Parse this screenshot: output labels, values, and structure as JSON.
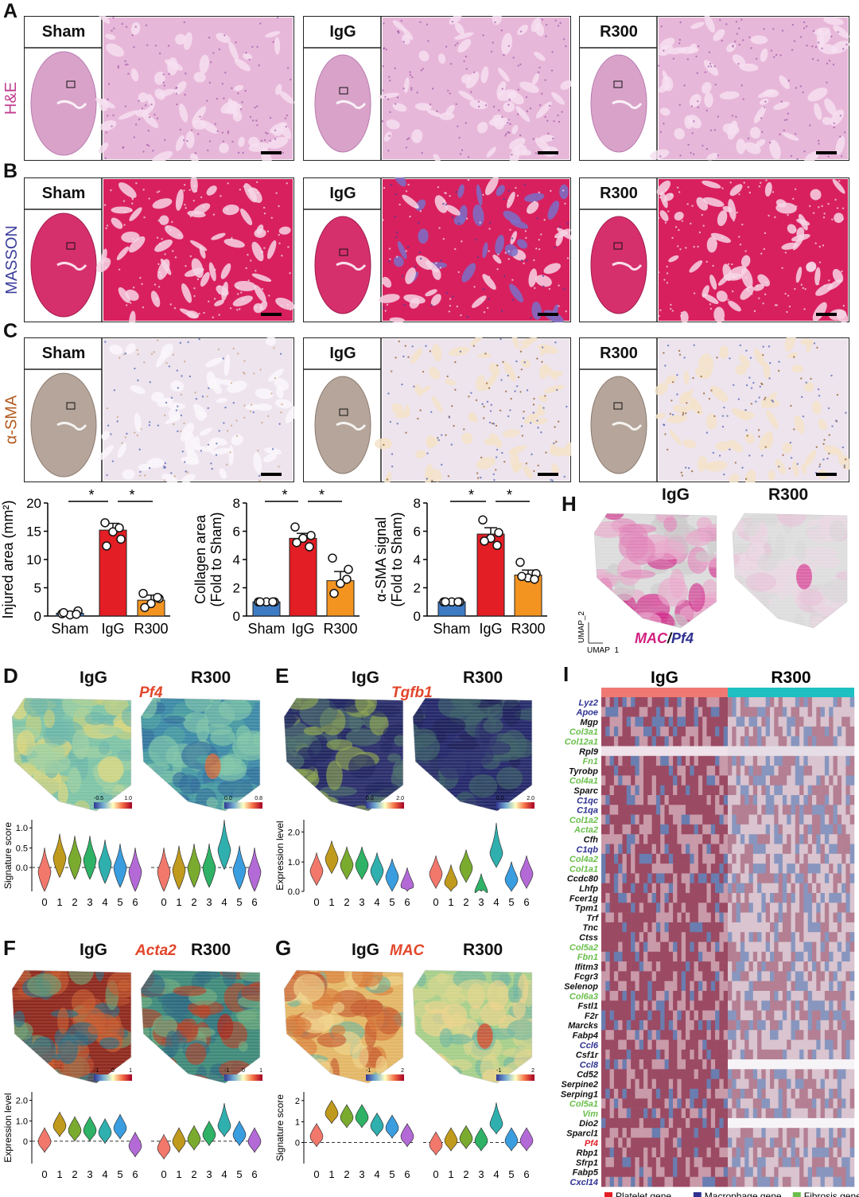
{
  "panel_letters": [
    "A",
    "B",
    "C",
    "D",
    "E",
    "F",
    "G",
    "H",
    "I"
  ],
  "groups": [
    "Sham",
    "IgG",
    "R300"
  ],
  "stains": [
    "H&E",
    "MASSON",
    "α-SMA"
  ],
  "colors": {
    "he_bg": "#e7b7d9",
    "he_dot": "#a25aa6",
    "masson_bg": "#d8205e",
    "masson_dot": "#f4e7f0",
    "masson_blue": "#3d3f9a",
    "sma_bg": "#eee4ee",
    "sma_brown": "#9b6a2d",
    "sham_bar": "#3e7bc5",
    "igg_bar": "#e31e24",
    "r300_bar": "#f39421",
    "stain_he_label": "#c23b8e",
    "stain_masson_label": "#3b3d9b",
    "stain_sma_label": "#b35a1d",
    "gene_highlight": "#e2462b",
    "platelet": "#e41d25",
    "macrophage": "#2e3191",
    "fibrosis": "#6abf4b"
  },
  "bar_charts": {
    "chart_data": [
      {
        "type": "bar",
        "categories": [
          "Sham",
          "IgG",
          "R300"
        ],
        "values": [
          0.5,
          15.2,
          2.8
        ],
        "errors": [
          0.3,
          1.2,
          0.9
        ],
        "points": [
          [
            0.4,
            0.9,
            0.2,
            0.6,
            0.3
          ],
          [
            16.5,
            13.6,
            14.9,
            12.4,
            15.6
          ],
          [
            4.0,
            3.1,
            2.2,
            1.5,
            3.3
          ]
        ],
        "ylabel": "Injured area (mm²)",
        "ylim": [
          0,
          20
        ],
        "yticks": [
          0,
          5,
          10,
          15,
          20
        ],
        "significance": [
          "*",
          "*"
        ]
      },
      {
        "type": "bar",
        "categories": [
          "Sham",
          "IgG",
          "R300"
        ],
        "values": [
          1.0,
          5.5,
          2.5
        ],
        "errors": [
          0.05,
          0.35,
          0.65
        ],
        "points": [
          [
            1,
            1,
            1,
            1,
            1
          ],
          [
            6.3,
            5.7,
            5.5,
            5.2,
            4.9
          ],
          [
            4.1,
            3.3,
            2.3,
            1.6,
            2.6
          ]
        ],
        "ylabel": "Collagen area",
        "ylabel2": "(Fold to Sham)",
        "ylim": [
          0,
          8
        ],
        "yticks": [
          0,
          2,
          4,
          6,
          8
        ],
        "significance": [
          "*",
          "*"
        ]
      },
      {
        "type": "bar",
        "categories": [
          "Sham",
          "IgG",
          "R300"
        ],
        "values": [
          1.0,
          5.8,
          2.9
        ],
        "errors": [
          0.05,
          0.45,
          0.35
        ],
        "points": [
          [
            1,
            1,
            1,
            1,
            1
          ],
          [
            6.8,
            5.9,
            5.5,
            5.3,
            5.0
          ],
          [
            3.8,
            3.0,
            2.7,
            2.8,
            2.6
          ]
        ],
        "ylabel": "α-SMA signal",
        "ylabel2": "(Fold to Sham)",
        "ylim": [
          0,
          8
        ],
        "yticks": [
          0,
          2,
          4,
          6,
          8
        ],
        "significance": [
          "*",
          "*"
        ]
      }
    ]
  },
  "spatial": {
    "D": {
      "igg": "IgG",
      "r300": "R300",
      "gene": "Pf4",
      "scale_min": "-0.5",
      "scale_max": "1.0",
      "scale_min2": "0.0",
      "scale_max2": "0.8",
      "ylabel": "Signature score"
    },
    "E": {
      "igg": "IgG",
      "r300": "R300",
      "gene": "Tgfb1",
      "scale_min": "0.0",
      "scale_max": "2.0",
      "scale_min2": "0.0",
      "scale_max2": "2.0",
      "ylabel": "Expression level"
    },
    "F": {
      "igg": "IgG",
      "r300": "R300",
      "gene": "Acta2",
      "scale_min": "-1",
      "scale_mid": "0",
      "scale_max": "1",
      "scale_min2": "-1",
      "scale_mid2": "0",
      "scale_max2": "1",
      "ylabel": "Expression level"
    },
    "G": {
      "igg": "IgG",
      "r300": "R300",
      "gene": "MAC",
      "scale_min": "-1",
      "scale_max": "2",
      "scale_min2": "-1",
      "scale_max2": "2",
      "ylabel": "Signature score"
    },
    "H": {
      "igg": "IgG",
      "r300": "R300",
      "umap1": "UMAP_1",
      "umap2": "UMAP_2",
      "legend_mac": "MAC",
      "legend_sep": "/",
      "legend_pf4": "Pf4"
    }
  },
  "violins": {
    "clusters": [
      "0",
      "1",
      "2",
      "3",
      "4",
      "5",
      "6"
    ],
    "cluster_colors": [
      "#f2786c",
      "#c09a1d",
      "#7aab2f",
      "#2fb266",
      "#2fb0ae",
      "#3a9ddf",
      "#b36ad6"
    ],
    "D_left": {
      "yticks": [
        "1.0",
        "0.5",
        "0.0"
      ],
      "ymin": -0.6,
      "ymax": 1.2,
      "medians": [
        -0.1,
        0.25,
        0.2,
        0.2,
        0.1,
        0.0,
        -0.1
      ]
    },
    "D_right": {
      "yticks": [],
      "ymin": -0.6,
      "ymax": 1.2,
      "medians": [
        -0.1,
        -0.05,
        0.0,
        0.0,
        0.45,
        -0.05,
        -0.1
      ]
    },
    "E_left": {
      "yticks": [
        "2.0",
        "1.0",
        "0.0"
      ],
      "ymin": 0,
      "ymax": 2.4,
      "medians": [
        0.7,
        1.1,
        0.9,
        0.9,
        0.7,
        0.5,
        0.2
      ]
    },
    "E_right": {
      "yticks": [],
      "ymin": 0,
      "ymax": 2.4,
      "medians": [
        0.6,
        0.3,
        0.8,
        0,
        1.3,
        0.4,
        0.6
      ]
    },
    "F_left": {
      "yticks": [
        "2.0",
        "1.0",
        "0"
      ],
      "ymin": -1.0,
      "ymax": 2.2,
      "medians": [
        0.0,
        0.7,
        0.5,
        0.5,
        0.4,
        0.6,
        -0.2
      ]
    },
    "F_right": {
      "yticks": [],
      "ymin": -1.0,
      "ymax": 2.2,
      "medians": [
        -0.3,
        0.0,
        0.1,
        0.3,
        0.7,
        0.3,
        0.0
      ]
    },
    "G_left": {
      "yticks": [
        "2",
        "1",
        "0"
      ],
      "ymin": -1.0,
      "ymax": 2.4,
      "medians": [
        0.3,
        1.4,
        1.2,
        1.2,
        0.8,
        0.7,
        0.3
      ]
    },
    "G_right": {
      "yticks": [],
      "ymin": -1.0,
      "ymax": 2.4,
      "medians": [
        -0.1,
        0.1,
        0.2,
        0.1,
        0.9,
        0.1,
        0.1
      ]
    }
  },
  "heatmap": {
    "group_left": "IgG",
    "group_right": "R300",
    "genes": [
      {
        "name": "Lyz2",
        "cat": "macrophage"
      },
      {
        "name": "Apoe",
        "cat": "macrophage"
      },
      {
        "name": "Mgp",
        "cat": "other"
      },
      {
        "name": "Col3a1",
        "cat": "fibrosis"
      },
      {
        "name": "Col12a1",
        "cat": "fibrosis"
      },
      {
        "name": "Rpl9",
        "cat": "other"
      },
      {
        "name": "Fn1",
        "cat": "fibrosis"
      },
      {
        "name": "Tyrobp",
        "cat": "other"
      },
      {
        "name": "Col4a1",
        "cat": "fibrosis"
      },
      {
        "name": "Sparc",
        "cat": "other"
      },
      {
        "name": "C1qc",
        "cat": "macrophage"
      },
      {
        "name": "C1qa",
        "cat": "macrophage"
      },
      {
        "name": "Col1a2",
        "cat": "fibrosis"
      },
      {
        "name": "Acta2",
        "cat": "fibrosis"
      },
      {
        "name": "Cfh",
        "cat": "other"
      },
      {
        "name": "C1qb",
        "cat": "macrophage"
      },
      {
        "name": "Col4a2",
        "cat": "fibrosis"
      },
      {
        "name": "Col1a1",
        "cat": "fibrosis"
      },
      {
        "name": "Ccdc80",
        "cat": "other"
      },
      {
        "name": "Lhfp",
        "cat": "other"
      },
      {
        "name": "Fcer1g",
        "cat": "other"
      },
      {
        "name": "Tpm1",
        "cat": "other"
      },
      {
        "name": "Trf",
        "cat": "other"
      },
      {
        "name": "Tnc",
        "cat": "other"
      },
      {
        "name": "Ctss",
        "cat": "other"
      },
      {
        "name": "Col5a2",
        "cat": "fibrosis"
      },
      {
        "name": "Fbn1",
        "cat": "fibrosis"
      },
      {
        "name": "Ifitm3",
        "cat": "other"
      },
      {
        "name": "Fcgr3",
        "cat": "other"
      },
      {
        "name": "Selenop",
        "cat": "other"
      },
      {
        "name": "Col6a3",
        "cat": "fibrosis"
      },
      {
        "name": "Fstl1",
        "cat": "other"
      },
      {
        "name": "F2r",
        "cat": "other"
      },
      {
        "name": "Marcks",
        "cat": "other"
      },
      {
        "name": "Fabp4",
        "cat": "other"
      },
      {
        "name": "Ccl6",
        "cat": "macrophage"
      },
      {
        "name": "Csf1r",
        "cat": "other"
      },
      {
        "name": "Ccl8",
        "cat": "macrophage"
      },
      {
        "name": "Cd52",
        "cat": "other"
      },
      {
        "name": "Serpine2",
        "cat": "other"
      },
      {
        "name": "Serping1",
        "cat": "other"
      },
      {
        "name": "Col5a1",
        "cat": "fibrosis"
      },
      {
        "name": "Vim",
        "cat": "fibrosis"
      },
      {
        "name": "Dio2",
        "cat": "other"
      },
      {
        "name": "Sparcl1",
        "cat": "other"
      },
      {
        "name": "Pf4",
        "cat": "platelet"
      },
      {
        "name": "Rbp1",
        "cat": "other"
      },
      {
        "name": "Sfrp1",
        "cat": "other"
      },
      {
        "name": "Fabp5",
        "cat": "other"
      },
      {
        "name": "Cxcl14",
        "cat": "macrophage"
      }
    ],
    "legend": [
      {
        "label": "Platelet gene",
        "cat": "platelet"
      },
      {
        "label": "Macrophage gene",
        "cat": "macrophage"
      },
      {
        "label": "Fibrosis gene",
        "cat": "fibrosis"
      }
    ]
  }
}
